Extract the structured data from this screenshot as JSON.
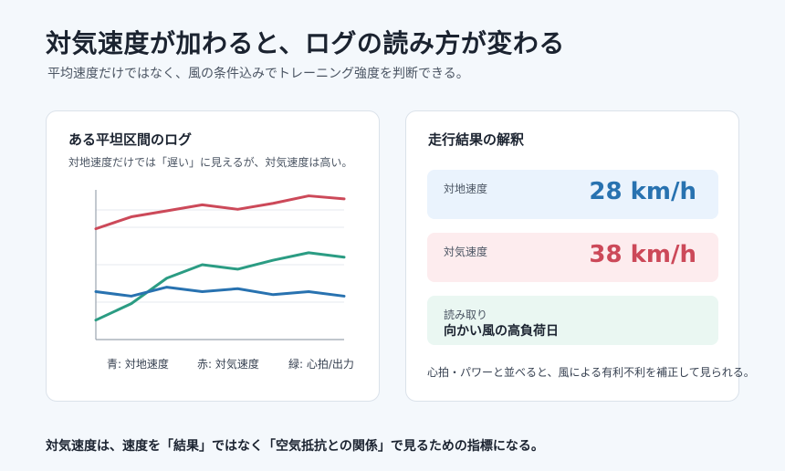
{
  "header": {
    "title": "対気速度が加わると、ログの読み方が変わる",
    "subtitle": "平均速度だけではなく、風の条件込みでトレーニング強度を判断できる。"
  },
  "chart_card": {
    "title": "ある平坦区間のログ",
    "description": "対地速度だけでは「遅い」に見えるが、対気速度は高い。"
  },
  "chart_data": {
    "type": "line",
    "title": "",
    "xlabel": "",
    "ylabel": "",
    "x": [
      0,
      1,
      2,
      3,
      4,
      5,
      6,
      7
    ],
    "ylim": [
      0,
      100
    ],
    "grid": true,
    "legend_position": "bottom",
    "series": [
      {
        "name": "赤: 対気速度",
        "color": "#cc4959",
        "values": [
          74,
          82,
          86,
          90,
          87,
          91,
          96,
          94
        ]
      },
      {
        "name": "緑: 心拍/出力",
        "color": "#2b9c83",
        "values": [
          13,
          24,
          41,
          50,
          47,
          53,
          58,
          55
        ]
      },
      {
        "name": "青: 対地速度",
        "color": "#2872b0",
        "values": [
          32,
          29,
          35,
          32,
          34,
          30,
          32,
          29
        ]
      }
    ]
  },
  "legend": {
    "blue": "青: 対地速度",
    "red": "赤: 対気速度",
    "green": "緑: 心拍/出力"
  },
  "result_card": {
    "title": "走行結果の解釈",
    "ground_speed": {
      "label": "対地速度",
      "value": "28 km/h"
    },
    "air_speed": {
      "label": "対気速度",
      "value": "38 km/h"
    },
    "reading": {
      "label": "読み取り",
      "value": "向かい風の高負荷日"
    },
    "note": "心拍・パワーと並べると、風による有利不利を補正して見られる。"
  },
  "footer": {
    "text": "対気速度は、速度を「結果」ではなく「空気抵抗との関係」で見るための指標になる。"
  }
}
